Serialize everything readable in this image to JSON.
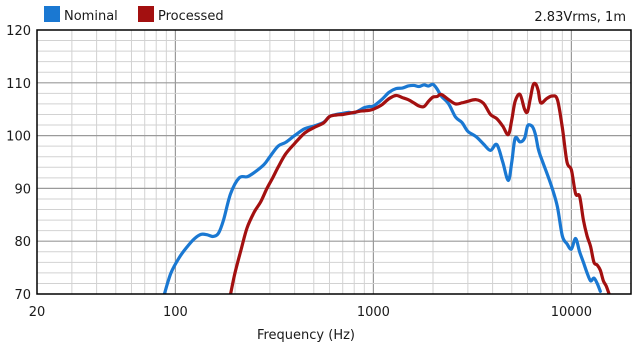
{
  "chart_data": {
    "type": "line",
    "title": "",
    "annotation": "2.83Vrms, 1m",
    "xlabel": "Frequency (Hz)",
    "ylabel": "",
    "xscale": "log",
    "xlim": [
      20,
      20000
    ],
    "ylim": [
      70,
      120
    ],
    "x_ticks": [
      20,
      100,
      1000,
      10000
    ],
    "x_tick_labels": [
      "20",
      "100",
      "1000",
      "10000"
    ],
    "y_ticks": [
      70,
      80,
      90,
      100,
      110,
      120
    ],
    "y_tick_labels": [
      "70",
      "80",
      "90",
      "100",
      "110",
      "120"
    ],
    "grid": true,
    "legend": "top-left",
    "series": [
      {
        "name": "Nominal",
        "color": "#1a78d2",
        "x": [
          88,
          95,
          105,
          115,
          125,
          135,
          145,
          155,
          165,
          175,
          190,
          210,
          230,
          250,
          280,
          300,
          330,
          360,
          400,
          450,
          500,
          560,
          600,
          650,
          700,
          750,
          800,
          850,
          900,
          950,
          1000,
          1100,
          1200,
          1300,
          1400,
          1500,
          1600,
          1700,
          1800,
          1900,
          2000,
          2100,
          2200,
          2400,
          2600,
          2800,
          3000,
          3300,
          3600,
          3900,
          4200,
          4500,
          4800,
          5000,
          5200,
          5500,
          5800,
          6000,
          6200,
          6400,
          6600,
          6800,
          7000,
          7500,
          8000,
          8500,
          9000,
          9500,
          10000,
          10500,
          11000,
          11500,
          12000,
          12500,
          13000,
          13500,
          14000
        ],
        "values": [
          70,
          74,
          77,
          79,
          80.5,
          81.3,
          81.2,
          80.9,
          81.5,
          84,
          89,
          92,
          92.2,
          93,
          94.5,
          96,
          98,
          98.7,
          100,
          101.3,
          101.8,
          102.5,
          103.6,
          104,
          104.2,
          104.4,
          104.3,
          104.8,
          105.3,
          105.5,
          105.6,
          106.8,
          108.2,
          108.9,
          109,
          109.4,
          109.5,
          109.3,
          109.6,
          109.4,
          109.7,
          108.8,
          107.5,
          106,
          103.5,
          102.5,
          100.8,
          99.8,
          98.4,
          97.2,
          98.3,
          95,
          91.5,
          95,
          99.5,
          98.8,
          99.5,
          101.8,
          102,
          101.5,
          100,
          97.5,
          96,
          93,
          90,
          86.5,
          81,
          79.5,
          78.5,
          80.5,
          78,
          76,
          74,
          72.5,
          73,
          72,
          70.5
        ]
      },
      {
        "name": "Processed",
        "color": "#a31010",
        "x": [
          190,
          200,
          215,
          230,
          250,
          270,
          290,
          310,
          330,
          360,
          400,
          450,
          500,
          560,
          600,
          650,
          700,
          750,
          800,
          850,
          900,
          950,
          1000,
          1100,
          1200,
          1300,
          1400,
          1500,
          1600,
          1700,
          1800,
          1900,
          2000,
          2100,
          2200,
          2400,
          2600,
          2800,
          3000,
          3300,
          3600,
          3900,
          4200,
          4500,
          4800,
          5000,
          5200,
          5500,
          5800,
          6000,
          6200,
          6400,
          6600,
          6800,
          7000,
          7500,
          8000,
          8500,
          9000,
          9500,
          10000,
          10500,
          11000,
          11500,
          12000,
          12500,
          13000,
          13500,
          14000,
          14500,
          15000,
          15500
        ],
        "values": [
          70,
          74,
          78.5,
          82.5,
          85.5,
          87.5,
          90,
          92,
          94,
          96.5,
          98.5,
          100.5,
          101.5,
          102.4,
          103.6,
          103.9,
          104,
          104.2,
          104.4,
          104.6,
          104.7,
          104.8,
          105,
          105.8,
          107,
          107.6,
          107.2,
          106.8,
          106.2,
          105.6,
          105.5,
          106.5,
          107.3,
          107.4,
          107.8,
          106.8,
          106,
          106.2,
          106.5,
          106.8,
          106.1,
          104,
          103.2,
          101.8,
          100.2,
          103,
          106.5,
          107.8,
          105,
          104.5,
          107,
          109.5,
          109.8,
          108.5,
          106.2,
          107,
          107.5,
          106.8,
          101.5,
          95,
          93.5,
          89,
          88.5,
          84,
          81,
          79,
          76,
          75.5,
          74.5,
          72.5,
          71.5,
          70
        ]
      }
    ]
  }
}
